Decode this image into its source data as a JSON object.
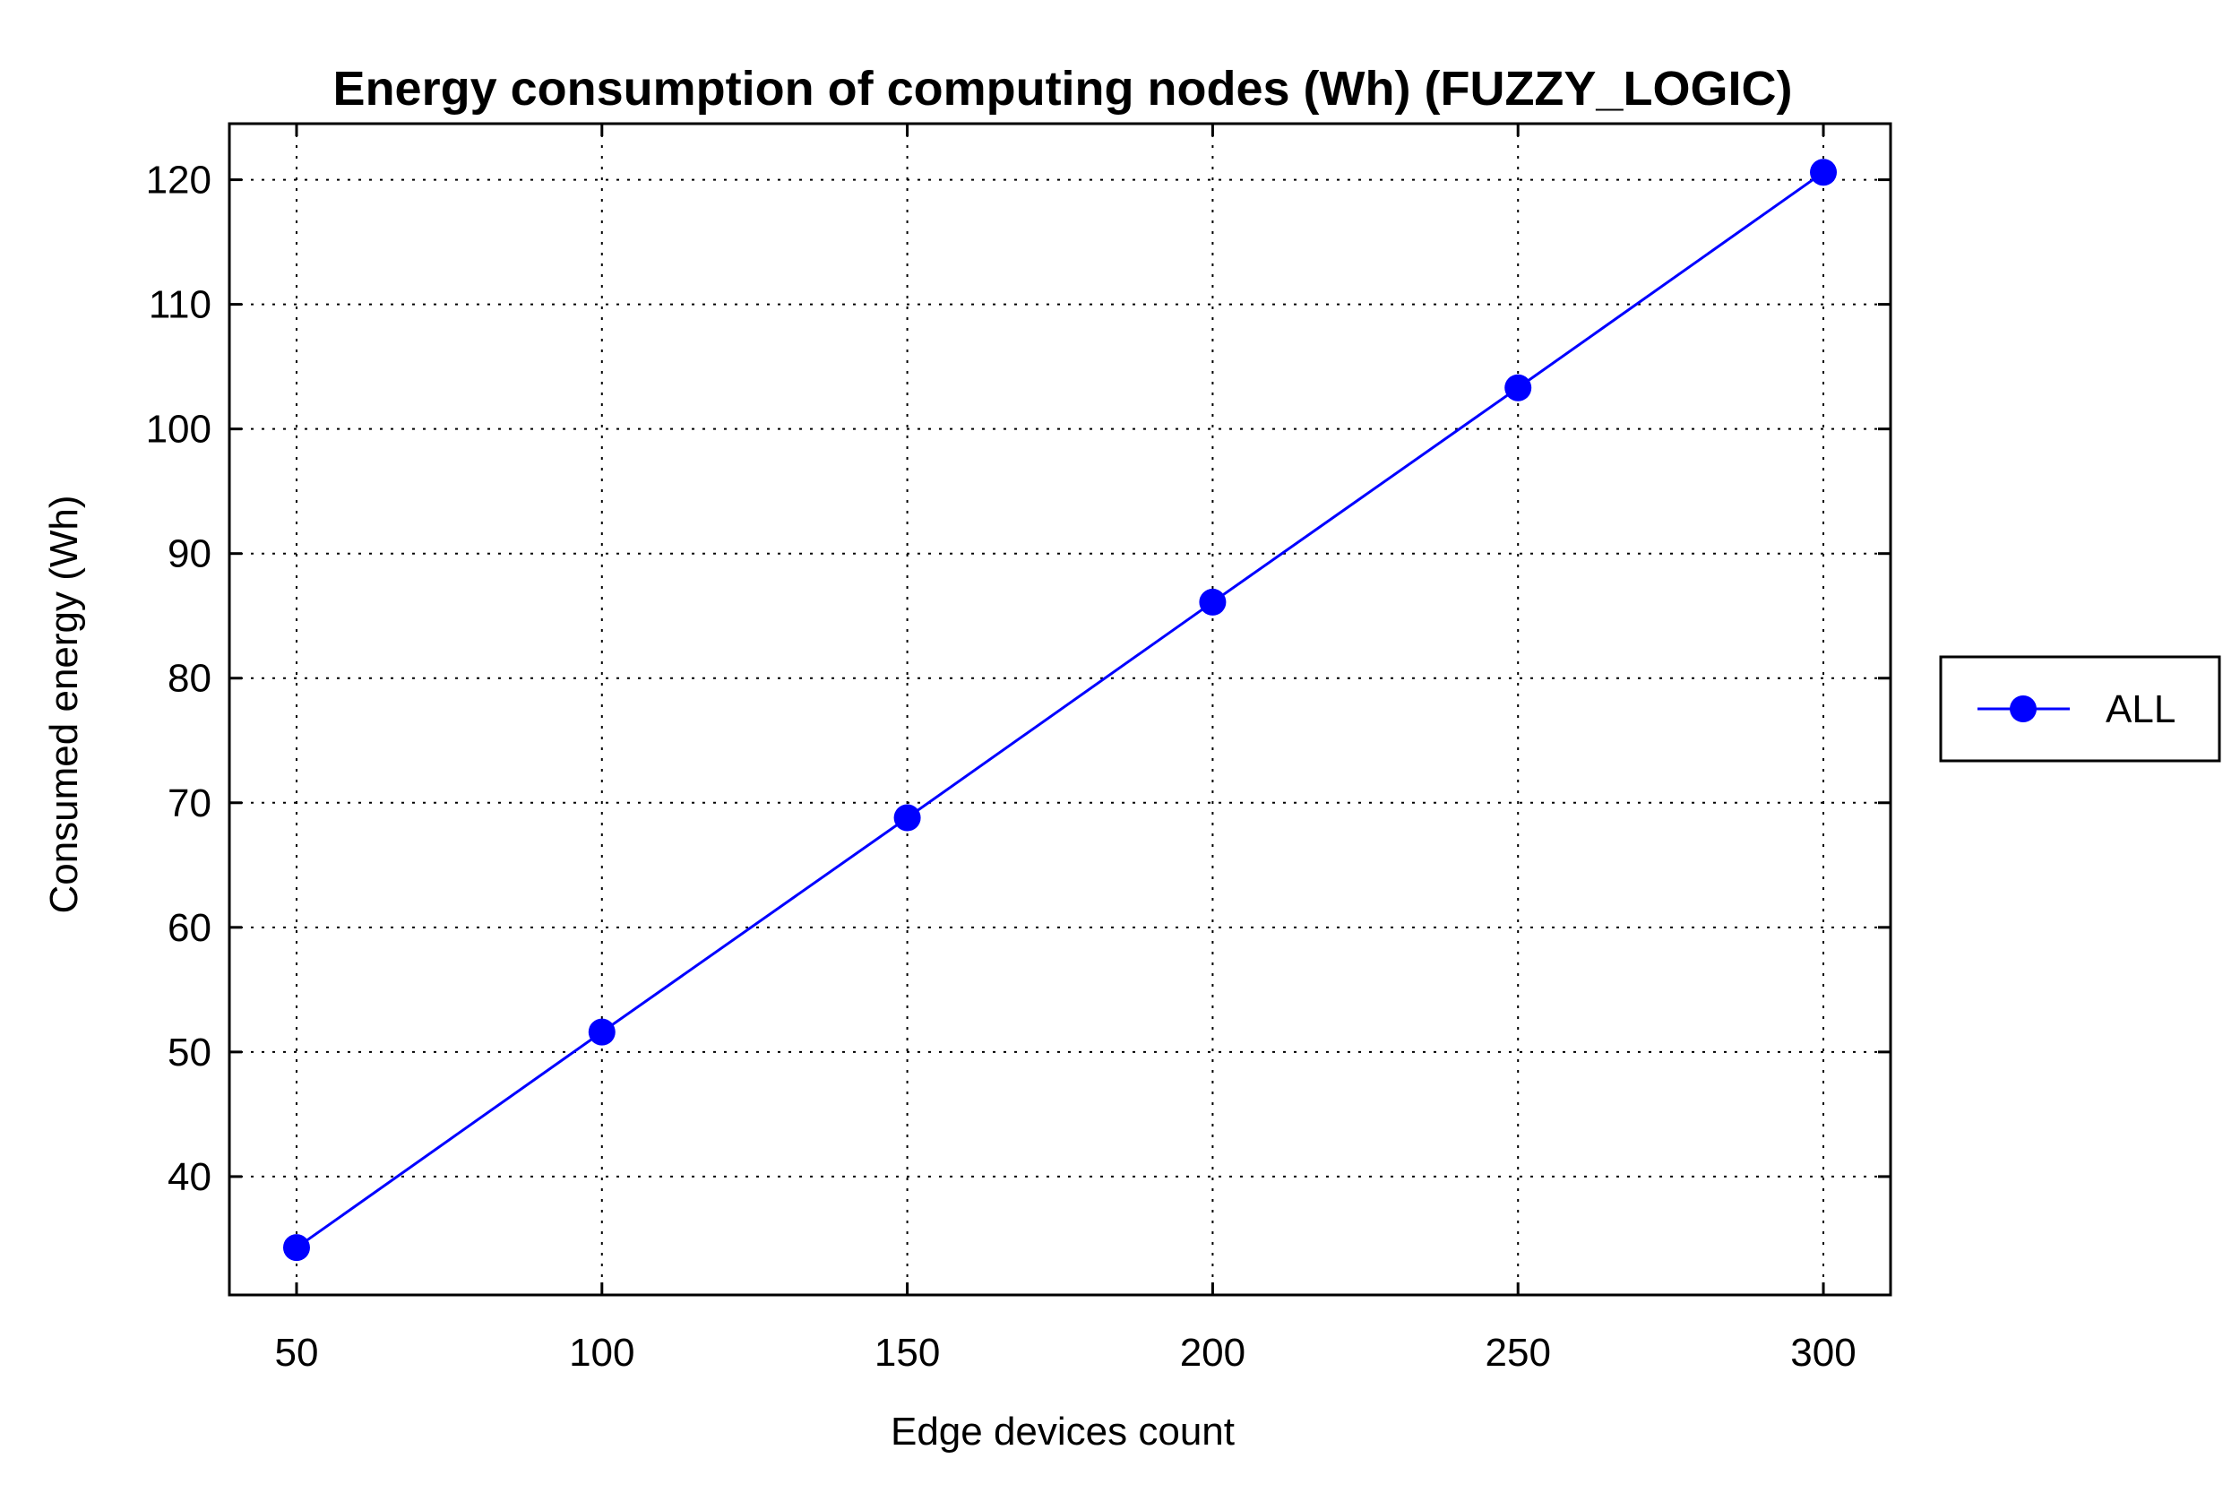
{
  "chart_data": {
    "type": "line",
    "title": "Energy consumption of computing nodes (Wh) (FUZZY_LOGIC)",
    "xlabel": "Edge devices count",
    "ylabel": "Consumed energy (Wh)",
    "x": [
      50,
      100,
      150,
      200,
      250,
      300
    ],
    "xticks": [
      50,
      100,
      150,
      200,
      250,
      300
    ],
    "yticks": [
      40,
      50,
      60,
      70,
      80,
      90,
      100,
      110,
      120
    ],
    "xlim": [
      39,
      311
    ],
    "ylim": [
      30.5,
      124.5
    ],
    "grid": true,
    "legend_position": "right",
    "series": [
      {
        "name": "ALL",
        "color": "#0000ff",
        "marker": "circle",
        "values": [
          34.3,
          51.6,
          68.8,
          86.1,
          103.3,
          120.6
        ]
      }
    ]
  }
}
